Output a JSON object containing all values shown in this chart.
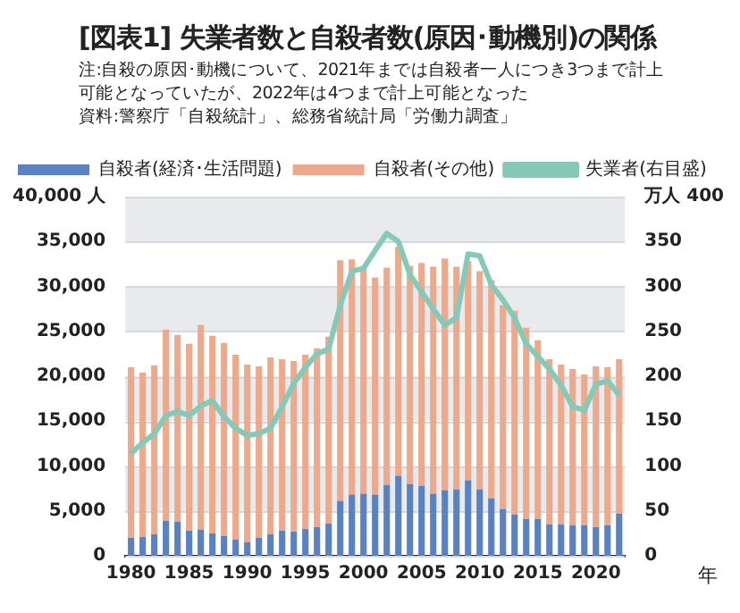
{
  "chart_data": {
    "type": "bar",
    "title": "[図表1] 失業者数と自殺者数(原因･動機別)の関係",
    "annotations": [
      "注:自殺の原因･動機について、2021年までは自殺者一人につき3つまで計上可能となっていたが、2022年は4つまで計上可能となった",
      "資料:警察庁「自殺統計」、総務省統計局「労働力調査」"
    ],
    "categories": [
      "1980",
      null,
      null,
      null,
      null,
      "1985",
      null,
      null,
      null,
      null,
      "1990",
      null,
      null,
      null,
      null,
      "1995",
      null,
      null,
      null,
      null,
      "2000",
      null,
      null,
      null,
      null,
      "2005",
      null,
      null,
      null,
      null,
      "2010",
      null,
      null,
      null,
      null,
      "2015",
      null,
      null,
      null,
      null,
      "2020",
      null,
      null
    ],
    "stacked": true,
    "legend": "top left",
    "grid": true,
    "xlabel": "年",
    "ylim": [
      0,
      40000
    ],
    "yticks": [
      0,
      {
        "value": 5000,
        "label": "5,000"
      },
      {
        "value": 10000,
        "label": "10,000"
      },
      {
        "value": 15000,
        "label": "15,000"
      },
      {
        "value": 20000,
        "label": "20,000"
      },
      {
        "value": 25000,
        "label": "25,000"
      },
      {
        "value": 30000,
        "label": "30,000"
      },
      {
        "value": 35000,
        "label": "35,000"
      },
      {
        "value": 40000,
        "label": "40,000 人"
      }
    ],
    "y2lim": [
      0,
      400
    ],
    "y2ticks": [
      0,
      50,
      100,
      150,
      200,
      250,
      300,
      350,
      {
        "value": 400,
        "label": "万人 400"
      }
    ],
    "series": [
      {
        "name": "自殺者(経済･生活問題)",
        "color": "#5b82c0",
        "values": [
          2000,
          2100,
          2400,
          3900,
          3800,
          2800,
          2900,
          2500,
          2200,
          1800,
          1500,
          2000,
          2400,
          2800,
          2700,
          3000,
          3200,
          3600,
          6100,
          6800,
          6900,
          6800,
          7900,
          8900,
          8000,
          7800,
          6900,
          7300,
          7400,
          8400,
          7400,
          6400,
          5200,
          4600,
          4100,
          4100,
          3500,
          3500,
          3400,
          3400,
          3200,
          3400,
          4700
        ]
      },
      {
        "name": "自殺者(その他)",
        "color": "#eda98b",
        "values": [
          19000,
          18300,
          18800,
          21300,
          20800,
          20800,
          22800,
          22000,
          21500,
          20600,
          19800,
          19100,
          19700,
          19100,
          19000,
          19400,
          19900,
          20800,
          26800,
          26200,
          25100,
          24200,
          24200,
          25500,
          24300,
          24800,
          25300,
          25800,
          24800,
          24400,
          24300,
          24300,
          22700,
          22700,
          21300,
          19900,
          18400,
          17800,
          17400,
          16800,
          17900,
          17600,
          17200
        ]
      },
      {
        "name": "失業者(右目盛)",
        "type": "line",
        "axis": "y2",
        "color": "#86c9b8",
        "marker": "none",
        "line_style": "solid",
        "values": [
          114,
          126,
          136,
          156,
          161,
          156,
          167,
          173,
          155,
          142,
          134,
          136,
          142,
          166,
          192,
          210,
          225,
          230,
          279,
          317,
          320,
          340,
          359,
          350,
          313,
          294,
          275,
          257,
          265,
          336,
          334,
          302,
          285,
          265,
          236,
          222,
          208,
          190,
          166,
          162,
          191,
          195,
          179
        ]
      }
    ]
  }
}
